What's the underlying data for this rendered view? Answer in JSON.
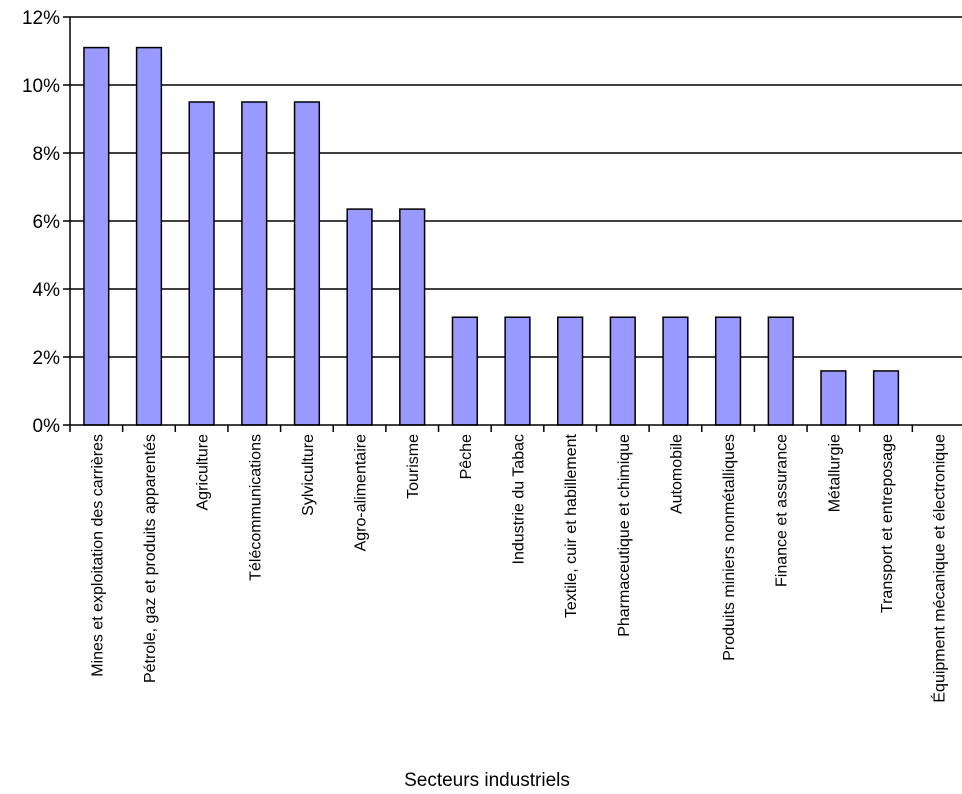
{
  "chart_data": {
    "type": "bar",
    "categories": [
      "Mines et exploitation des carrières",
      "Pétrole, gaz et produits apparentés",
      "Agriculture",
      "Télécommunications",
      "Sylviculture",
      "Agro-alimentaire",
      "Tourisme",
      "Pêche",
      "Industrie du Tabac",
      "Textile, cuir et habillement",
      "Pharmaceutique et chimique",
      "Automobile",
      "Produits miniers nonmétalliques",
      "Finance et assurance",
      "Métallurgie",
      "Transport et entreposage",
      "Équipment mécanique et électronique"
    ],
    "values": [
      11.1,
      11.1,
      9.5,
      9.5,
      9.5,
      6.35,
      6.35,
      3.17,
      3.17,
      3.17,
      3.17,
      3.17,
      3.17,
      3.17,
      1.59,
      1.59,
      0
    ],
    "ylim": [
      0,
      12
    ],
    "yticks": [
      0,
      2,
      4,
      6,
      8,
      10,
      12
    ],
    "ytick_labels": [
      "0%",
      "2%",
      "4%",
      "6%",
      "8%",
      "10%",
      "12%"
    ],
    "xlabel": "Secteurs industriels",
    "ylabel": "",
    "title": "",
    "grid": true,
    "bar_color": "#9999ff"
  }
}
